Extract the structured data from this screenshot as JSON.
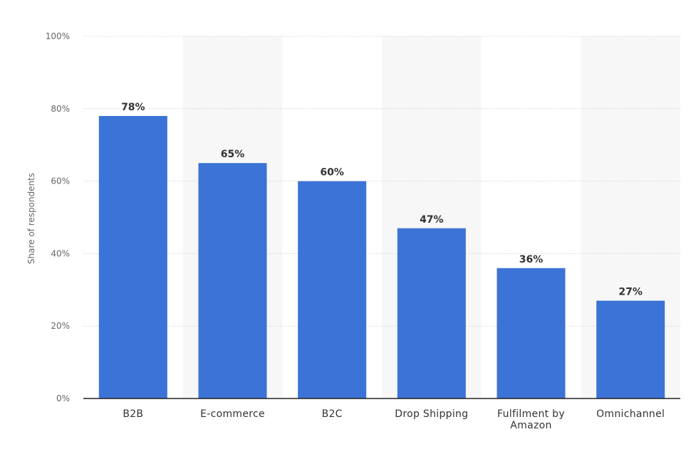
{
  "chart_data": {
    "type": "bar",
    "categories": [
      "B2B",
      "E-commerce",
      "B2C",
      "Drop Shipping",
      "Fulfilment by Amazon",
      "Omnichannel"
    ],
    "category_label_lines": [
      [
        "B2B"
      ],
      [
        "E-commerce"
      ],
      [
        "B2C"
      ],
      [
        "Drop Shipping"
      ],
      [
        "Fulfilment by",
        "Amazon"
      ],
      [
        "Omnichannel"
      ]
    ],
    "values": [
      78,
      65,
      60,
      47,
      36,
      27
    ],
    "data_labels": [
      "78%",
      "65%",
      "60%",
      "47%",
      "36%",
      "27%"
    ],
    "title": "",
    "xlabel": "",
    "ylabel": "Share of respondents",
    "ylim": [
      0,
      100
    ],
    "yticks": [
      0,
      20,
      40,
      60,
      80,
      100
    ],
    "ytick_labels": [
      "0%",
      "20%",
      "40%",
      "60%",
      "80%",
      "100%"
    ],
    "grid": true,
    "alternating_band_shading": true,
    "colors": {
      "bar": "#3c73d6",
      "band": "#f7f7f7",
      "grid": "#c8c8c8",
      "axis": "#222222"
    }
  }
}
